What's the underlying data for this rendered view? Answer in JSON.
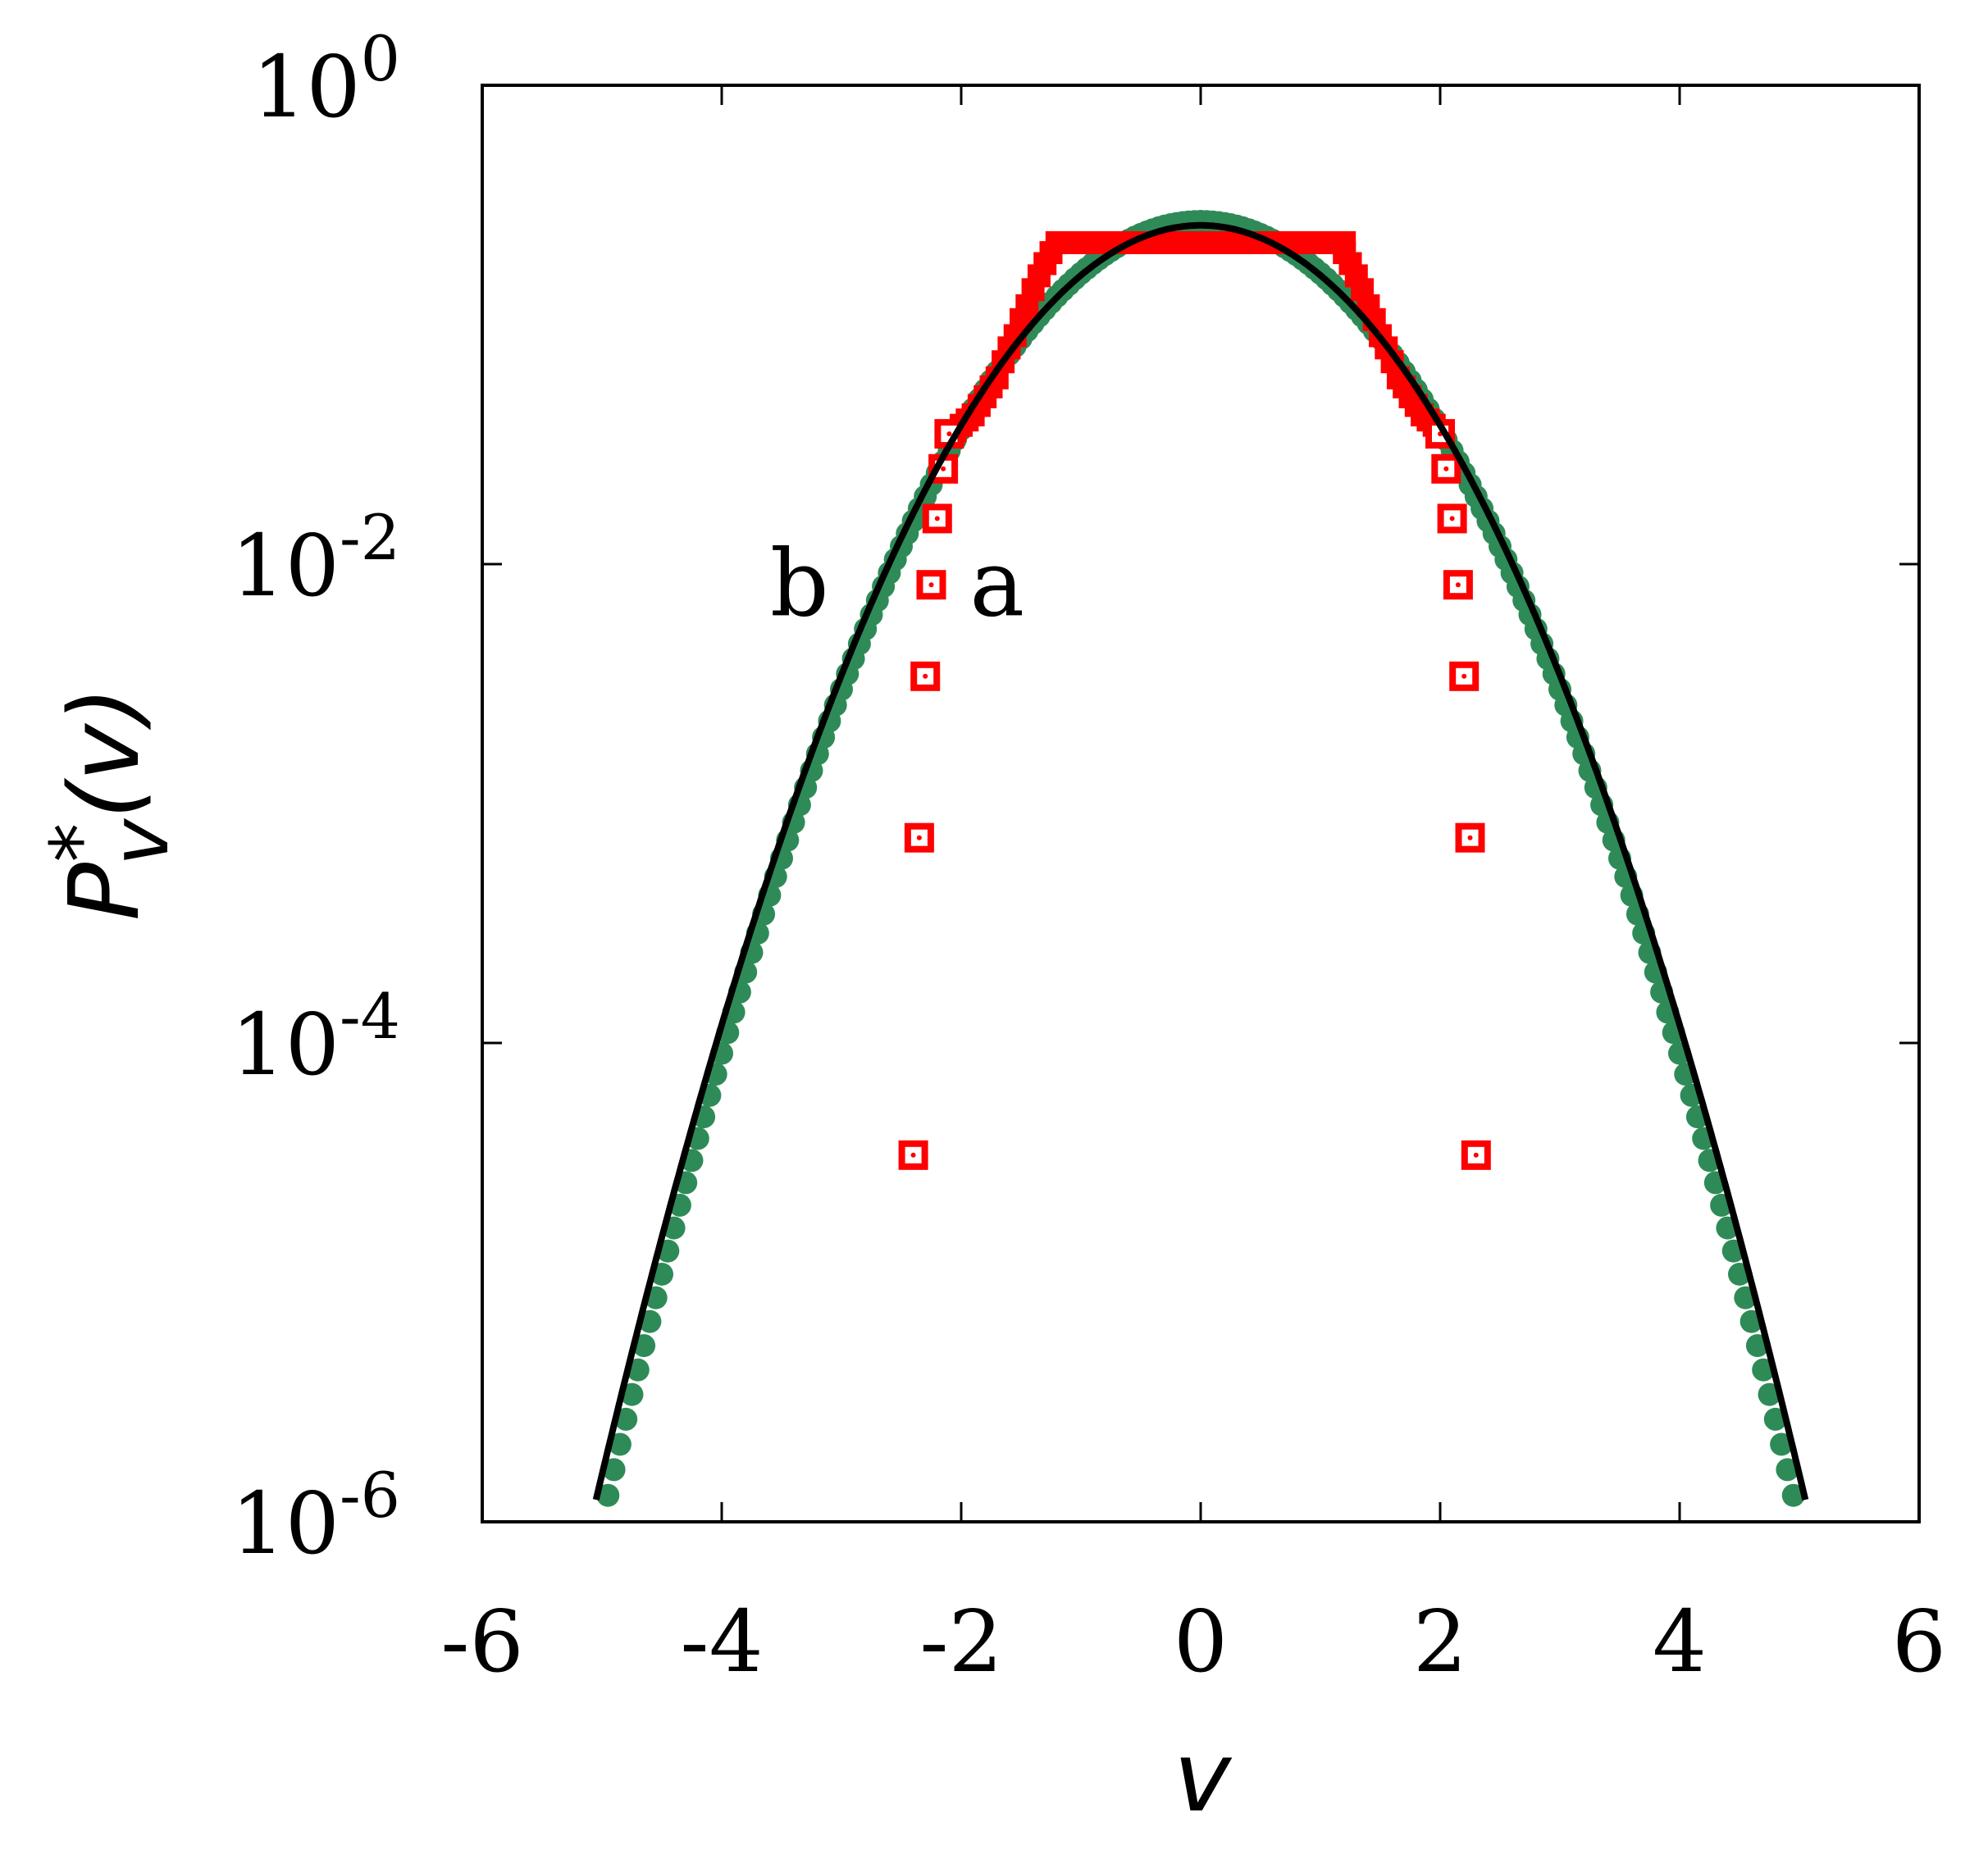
{
  "chart_data": {
    "type": "scatter",
    "title": "",
    "xlabel": "v",
    "ylabel": {
      "base": "P",
      "superscript": "*",
      "subscript": "v",
      "arg": "(v)"
    },
    "xlim": [
      -6,
      6
    ],
    "ylim": [
      1e-06,
      1
    ],
    "yscale": "log",
    "grid": false,
    "legend": "none",
    "x_ticks": [
      -6,
      -4,
      -2,
      0,
      2,
      4,
      6
    ],
    "x_tick_labels": [
      "-6",
      "-4",
      "-2",
      "0",
      "2",
      "4",
      "6"
    ],
    "y_ticks": [
      {
        "value": 1,
        "base": "10",
        "exp": "0"
      },
      {
        "value": 0.01,
        "base": "10",
        "exp": "-2"
      },
      {
        "value": 0.0001,
        "base": "10",
        "exp": "-4"
      },
      {
        "value": 1e-06,
        "base": "10",
        "exp": "-6"
      }
    ],
    "annotations": [
      {
        "text": "b",
        "x": -3.35,
        "y": 0.0061
      },
      {
        "text": "a",
        "x": -1.7,
        "y": 0.0061
      }
    ],
    "series": [
      {
        "label": "a",
        "marker": "hollow-square",
        "color": "#ff0000",
        "plateau": {
          "x_start": -1.2,
          "x_end": 1.2,
          "y": 0.22
        },
        "points": [
          {
            "x": -2.1,
            "y": 0.035
          },
          {
            "x": -2.15,
            "y": 0.025
          },
          {
            "x": -2.2,
            "y": 0.0155
          },
          {
            "x": -2.25,
            "y": 0.0082
          },
          {
            "x": -2.3,
            "y": 0.0034
          },
          {
            "x": -2.35,
            "y": 0.00072
          },
          {
            "x": -2.4,
            "y": 3.4e-05
          },
          {
            "x": 2.0,
            "y": 0.035
          },
          {
            "x": 2.05,
            "y": 0.025
          },
          {
            "x": 2.1,
            "y": 0.0155
          },
          {
            "x": 2.15,
            "y": 0.0082
          },
          {
            "x": 2.2,
            "y": 0.0034
          },
          {
            "x": 2.25,
            "y": 0.00072
          },
          {
            "x": 2.3,
            "y": 3.4e-05
          }
        ]
      },
      {
        "label": "b",
        "marker": "filled-circle",
        "color": "#2e8b57",
        "model": {
          "kind": "gaussian",
          "mean": 0,
          "sigma": 1.0,
          "peak": 0.27
        },
        "x_range": [
          -4.95,
          4.95
        ],
        "x_step": 0.05
      },
      {
        "label": "",
        "marker": "line",
        "color": "#000000",
        "model": {
          "kind": "gaussian",
          "mean": 0,
          "sigma": 1.02,
          "peak": 0.26
        },
        "x_range": [
          -5.05,
          5.05
        ]
      }
    ]
  }
}
